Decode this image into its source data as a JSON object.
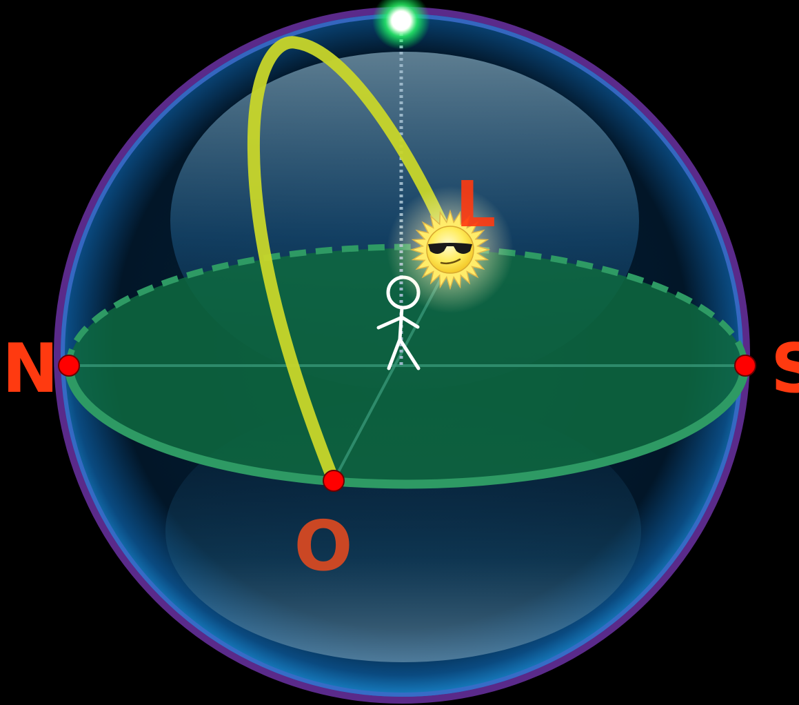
{
  "diagram": {
    "labels": {
      "north": "N",
      "south": "S",
      "east": "L",
      "west": "O"
    },
    "colors": {
      "background": "#000000",
      "sphere_outer": "#5a2a8a",
      "sphere_ring": "#2a9ad8",
      "horizon_plane": "#0e6a40",
      "horizon_rim": "#2e9a64",
      "sun_path": "#c8d62a",
      "cardinal_point": "#ff0000",
      "zenith": "#2aff6a",
      "label_text": "#ff3a10",
      "sun_glow": "#fff6b0",
      "sun_body": "#ffe84a"
    },
    "icons": {
      "observer": "stick-figure-icon",
      "sun": "sun-with-sunglasses-icon",
      "zenith": "zenith-point-icon"
    }
  }
}
